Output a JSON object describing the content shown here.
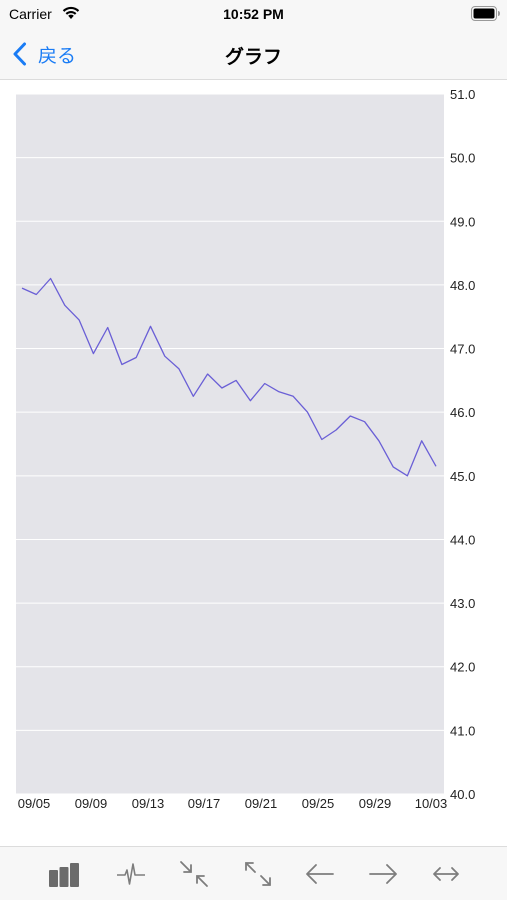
{
  "status_bar": {
    "carrier": "Carrier",
    "time": "10:52 PM",
    "wifi_icon": "wifi-icon",
    "battery_icon": "battery-icon"
  },
  "nav": {
    "back_label": "戻る",
    "title": "グラフ"
  },
  "colors": {
    "accent": "#1a7cf5",
    "plot_background": "#e4e4e9",
    "gridline": "#ffffff",
    "series_line": "#6a5fd6",
    "toolbar_icon": "#7d7d7d",
    "toolbar_icon_active": "#6b6b6b"
  },
  "chart_data": {
    "type": "line",
    "title": "",
    "xlabel": "",
    "ylabel": "",
    "ylim": [
      40.0,
      51.0
    ],
    "y_axis_position": "right",
    "grid": "horizontal",
    "x_tick_labels": [
      "09/05",
      "09/09",
      "09/13",
      "09/17",
      "09/21",
      "09/25",
      "09/29",
      "10/03"
    ],
    "y_tick_labels": [
      "40.0",
      "41.0",
      "42.0",
      "43.0",
      "44.0",
      "45.0",
      "46.0",
      "47.0",
      "48.0",
      "49.0",
      "50.0",
      "51.0"
    ],
    "x": [
      "09/04",
      "09/05",
      "09/06",
      "09/07",
      "09/08",
      "09/09",
      "09/10",
      "09/11",
      "09/12",
      "09/13",
      "09/14",
      "09/15",
      "09/16",
      "09/17",
      "09/18",
      "09/19",
      "09/20",
      "09/21",
      "09/22",
      "09/23",
      "09/24",
      "09/25",
      "09/26",
      "09/27",
      "09/28",
      "09/29",
      "09/30",
      "10/01",
      "10/02",
      "10/03"
    ],
    "series": [
      {
        "values": [
          47.95,
          47.85,
          48.1,
          47.68,
          47.45,
          46.92,
          47.33,
          46.75,
          46.86,
          47.35,
          46.88,
          46.68,
          46.25,
          46.6,
          46.38,
          46.5,
          46.18,
          46.45,
          46.32,
          46.25,
          46.0,
          45.57,
          45.72,
          45.94,
          45.85,
          45.55,
          45.14,
          45.0,
          45.55,
          45.15
        ]
      }
    ]
  },
  "toolbar": {
    "buttons": [
      {
        "icon": "bar-chart-icon"
      },
      {
        "icon": "pulse-icon"
      },
      {
        "icon": "shrink-icon"
      },
      {
        "icon": "expand-icon"
      },
      {
        "icon": "arrow-left-icon"
      },
      {
        "icon": "arrow-right-icon"
      },
      {
        "icon": "arrow-left-right-icon"
      }
    ]
  }
}
